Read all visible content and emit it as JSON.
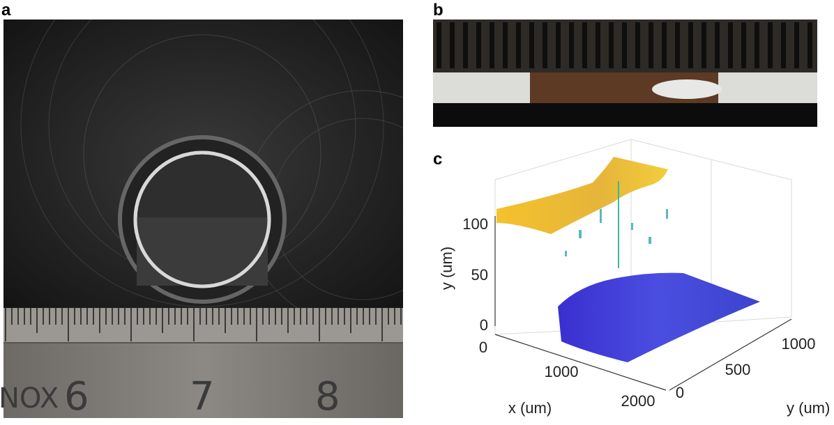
{
  "panels": [
    {
      "label": "a",
      "ruler_text": [
        "NOX",
        "6",
        "7",
        "8"
      ]
    },
    {
      "label": "b"
    },
    {
      "label": "c",
      "z_axis": {
        "label": "y (um)",
        "ticks": [
          "0",
          "50",
          "100"
        ]
      },
      "x_axis": {
        "label": "x (um)",
        "ticks": [
          "0",
          "1000",
          "2000"
        ]
      },
      "y_axis": {
        "label": "y (um)",
        "ticks": [
          "0",
          "500",
          "1000"
        ]
      }
    }
  ]
}
